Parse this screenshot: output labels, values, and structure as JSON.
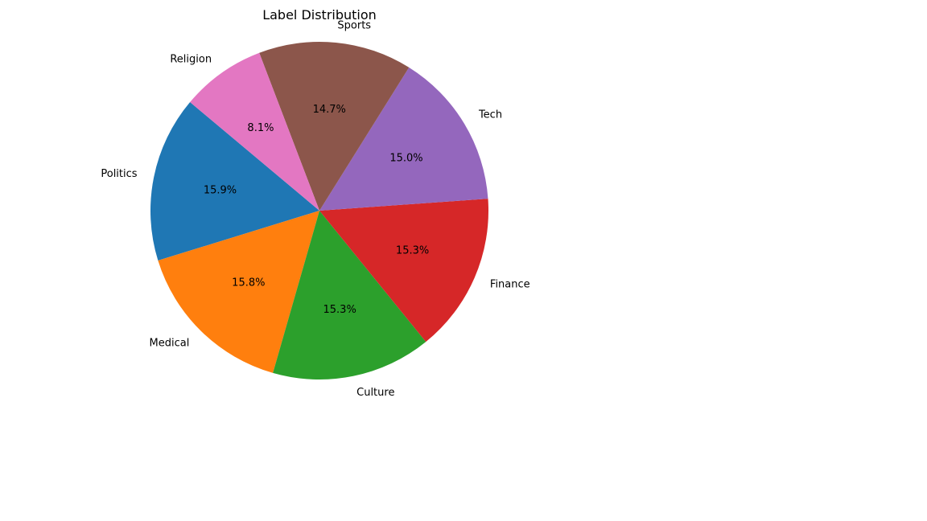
{
  "chart_data": {
    "type": "pie",
    "title": "Label Distribution",
    "start_angle": 140,
    "direction": "counterclockwise",
    "legend": "none",
    "slices": [
      {
        "label": "Politics",
        "percent": "15.9%",
        "value": 15.9,
        "color": "#1f77b4"
      },
      {
        "label": "Medical",
        "percent": "15.8%",
        "value": 15.8,
        "color": "#ff7f0e"
      },
      {
        "label": "Culture",
        "percent": "15.3%",
        "value": 15.3,
        "color": "#2ca02c"
      },
      {
        "label": "Finance",
        "percent": "15.3%",
        "value": 15.3,
        "color": "#d62728"
      },
      {
        "label": "Tech",
        "percent": "15.0%",
        "value": 15.0,
        "color": "#9467bd"
      },
      {
        "label": "Sports",
        "percent": "14.7%",
        "value": 14.7,
        "color": "#8c564b"
      },
      {
        "label": "Religion",
        "percent": "8.1%",
        "value": 8.1,
        "color": "#e377c2"
      }
    ]
  }
}
